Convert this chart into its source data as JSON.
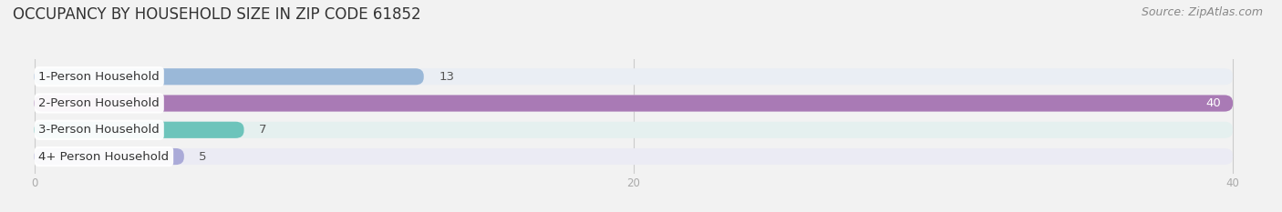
{
  "title": "OCCUPANCY BY HOUSEHOLD SIZE IN ZIP CODE 61852",
  "source": "Source: ZipAtlas.com",
  "categories": [
    "1-Person Household",
    "2-Person Household",
    "3-Person Household",
    "4+ Person Household"
  ],
  "values": [
    13,
    40,
    7,
    5
  ],
  "bar_colors": [
    "#9ab8d8",
    "#a97ab5",
    "#6dc4bb",
    "#aaaad8"
  ],
  "bar_bg_colors": [
    "#eaeef4",
    "#ece8ef",
    "#e5f0ef",
    "#ebebf4"
  ],
  "xlim_data": [
    0,
    40
  ],
  "xticks": [
    0,
    20,
    40
  ],
  "bar_height": 0.62,
  "label_fontsize": 9.5,
  "title_fontsize": 12,
  "source_fontsize": 9,
  "value_fontsize": 9.5,
  "bg_color": "#f2f2f2",
  "tick_color": "#aaaaaa",
  "grid_color": "#cccccc"
}
